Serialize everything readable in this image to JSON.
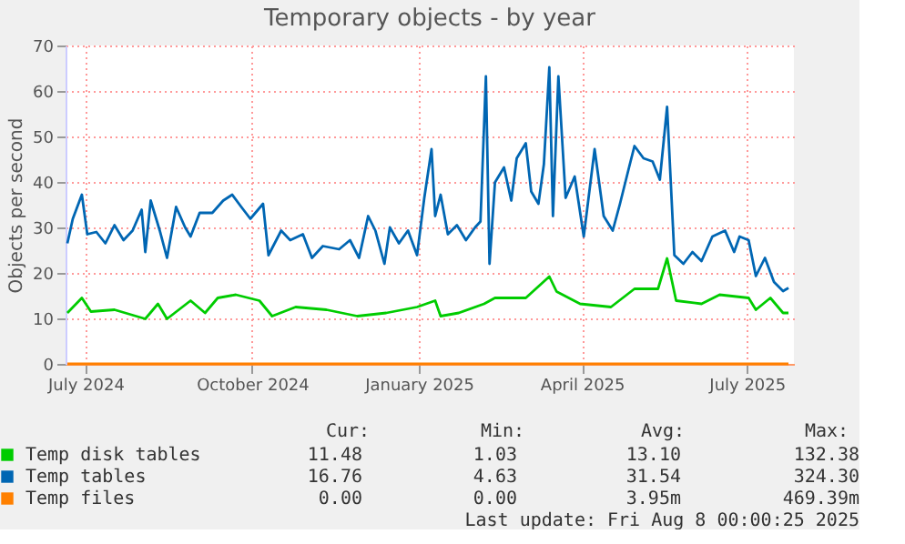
{
  "chart_data": {
    "type": "line",
    "title": "Temporary objects - by year",
    "ylabel": "Objects per second",
    "xlim": [
      "2024-06-20",
      "2025-07-27"
    ],
    "xticks": [
      {
        "value": "2024-07-01",
        "label": "July 2024"
      },
      {
        "value": "2024-10-01",
        "label": "October 2024"
      },
      {
        "value": "2025-01-01",
        "label": "January 2025"
      },
      {
        "value": "2025-04-01",
        "label": "April 2025"
      },
      {
        "value": "2025-07-01",
        "label": "July 2025"
      }
    ],
    "ylim": [
      0,
      70
    ],
    "yticks": [
      0,
      10,
      20,
      30,
      40,
      50,
      60,
      70
    ],
    "grid": true,
    "legend": "bottom",
    "marker": "none",
    "line_style": "solid",
    "series": [
      {
        "name": "Temp disk tables",
        "color": "#00cc00",
        "x": [
          "2024-06-21",
          "2024-06-29",
          "2024-07-04",
          "2024-07-17",
          "2024-08-03",
          "2024-08-10",
          "2024-08-15",
          "2024-08-28",
          "2024-09-05",
          "2024-09-12",
          "2024-09-22",
          "2024-10-05",
          "2024-10-12",
          "2024-10-25",
          "2024-11-11",
          "2024-11-28",
          "2024-12-14",
          "2024-12-31",
          "2025-01-10",
          "2025-01-13",
          "2025-01-23",
          "2025-02-06",
          "2025-02-12",
          "2025-03-01",
          "2025-03-14",
          "2025-03-18",
          "2025-03-31",
          "2025-04-17",
          "2025-04-30",
          "2025-05-13",
          "2025-05-18",
          "2025-05-23",
          "2025-06-06",
          "2025-06-16",
          "2025-07-02",
          "2025-07-06",
          "2025-07-14",
          "2025-07-21",
          "2025-07-24"
        ],
        "values": [
          11.2,
          14.5,
          11.5,
          11.9,
          9.9,
          13.2,
          9.9,
          13.9,
          11.2,
          14.5,
          15.2,
          13.9,
          10.5,
          12.5,
          11.9,
          10.5,
          11.2,
          12.5,
          13.9,
          10.5,
          11.2,
          13.2,
          14.5,
          14.5,
          19.2,
          15.9,
          13.2,
          12.5,
          16.5,
          16.5,
          23.2,
          13.9,
          13.2,
          15.2,
          14.5,
          11.9,
          14.5,
          11.2,
          11.2
        ]
      },
      {
        "name": "Temp tables",
        "color": "#0066b3",
        "x": [
          "2024-06-21",
          "2024-06-24",
          "2024-06-29",
          "2024-07-02",
          "2024-07-07",
          "2024-07-12",
          "2024-07-17",
          "2024-07-22",
          "2024-07-27",
          "2024-08-01",
          "2024-08-03",
          "2024-08-06",
          "2024-08-11",
          "2024-08-15",
          "2024-08-20",
          "2024-08-25",
          "2024-08-28",
          "2024-09-02",
          "2024-09-09",
          "2024-09-15",
          "2024-09-20",
          "2024-09-25",
          "2024-09-30",
          "2024-10-07",
          "2024-10-10",
          "2024-10-17",
          "2024-10-22",
          "2024-10-29",
          "2024-11-03",
          "2024-11-09",
          "2024-11-18",
          "2024-11-24",
          "2024-11-29",
          "2024-12-04",
          "2024-12-08",
          "2024-12-13",
          "2024-12-16",
          "2024-12-21",
          "2024-12-26",
          "2024-12-31",
          "2025-01-04",
          "2025-01-08",
          "2025-01-10",
          "2025-01-13",
          "2025-01-17",
          "2025-01-22",
          "2025-01-27",
          "2025-02-01",
          "2025-02-04",
          "2025-02-07",
          "2025-02-09",
          "2025-02-12",
          "2025-02-17",
          "2025-02-21",
          "2025-02-24",
          "2025-03-01",
          "2025-03-04",
          "2025-03-08",
          "2025-03-11",
          "2025-03-14",
          "2025-03-16",
          "2025-03-19",
          "2025-03-23",
          "2025-03-28",
          "2025-04-02",
          "2025-04-08",
          "2025-04-13",
          "2025-04-18",
          "2025-04-22",
          "2025-04-27",
          "2025-04-30",
          "2025-05-05",
          "2025-05-10",
          "2025-05-14",
          "2025-05-18",
          "2025-05-22",
          "2025-05-27",
          "2025-06-01",
          "2025-06-06",
          "2025-06-12",
          "2025-06-19",
          "2025-06-24",
          "2025-06-27",
          "2025-07-02",
          "2025-07-06",
          "2025-07-11",
          "2025-07-16",
          "2025-07-21",
          "2025-07-24"
        ],
        "values": [
          26.5,
          31.9,
          37.2,
          28.5,
          29,
          26.5,
          30.5,
          27.2,
          29.3,
          33.9,
          24.6,
          35.9,
          29.3,
          23.3,
          34.5,
          30,
          28,
          33.2,
          33.2,
          35.9,
          37.2,
          34.5,
          31.9,
          35.2,
          23.9,
          29.3,
          27.2,
          28.5,
          23.3,
          25.9,
          25.2,
          27.2,
          23.3,
          32.5,
          29.3,
          22,
          30,
          26.5,
          29.3,
          23.9,
          36.5,
          47.2,
          32.5,
          37.2,
          28.5,
          30.5,
          27.2,
          30,
          31.3,
          63.2,
          22,
          39.9,
          43.2,
          35.9,
          45.2,
          48.5,
          37.9,
          35.2,
          43.9,
          65.2,
          32.5,
          63.2,
          36.5,
          41.2,
          28,
          47.2,
          32.5,
          29.3,
          35.2,
          43.2,
          47.9,
          45.2,
          44.5,
          40.5,
          56.5,
          23.9,
          22,
          24.6,
          22.6,
          28,
          29.3,
          24.6,
          28,
          27.2,
          19.3,
          23.3,
          18,
          16,
          16.7
        ]
      },
      {
        "name": "Temp files",
        "color": "#ff8000",
        "x": [
          "2024-06-21",
          "2025-07-24"
        ],
        "values": [
          0,
          0
        ]
      }
    ],
    "annotations": [
      "Cur:",
      "Min:",
      "Avg:",
      "Max:",
      "11.48",
      "1.03",
      "13.10",
      "132.38",
      "16.76",
      "4.63",
      "31.54",
      "324.30",
      "0.00",
      "0.00",
      "3.95m",
      "469.39m",
      "Last update: Fri Aug  8 00:00:25 2025"
    ]
  }
}
